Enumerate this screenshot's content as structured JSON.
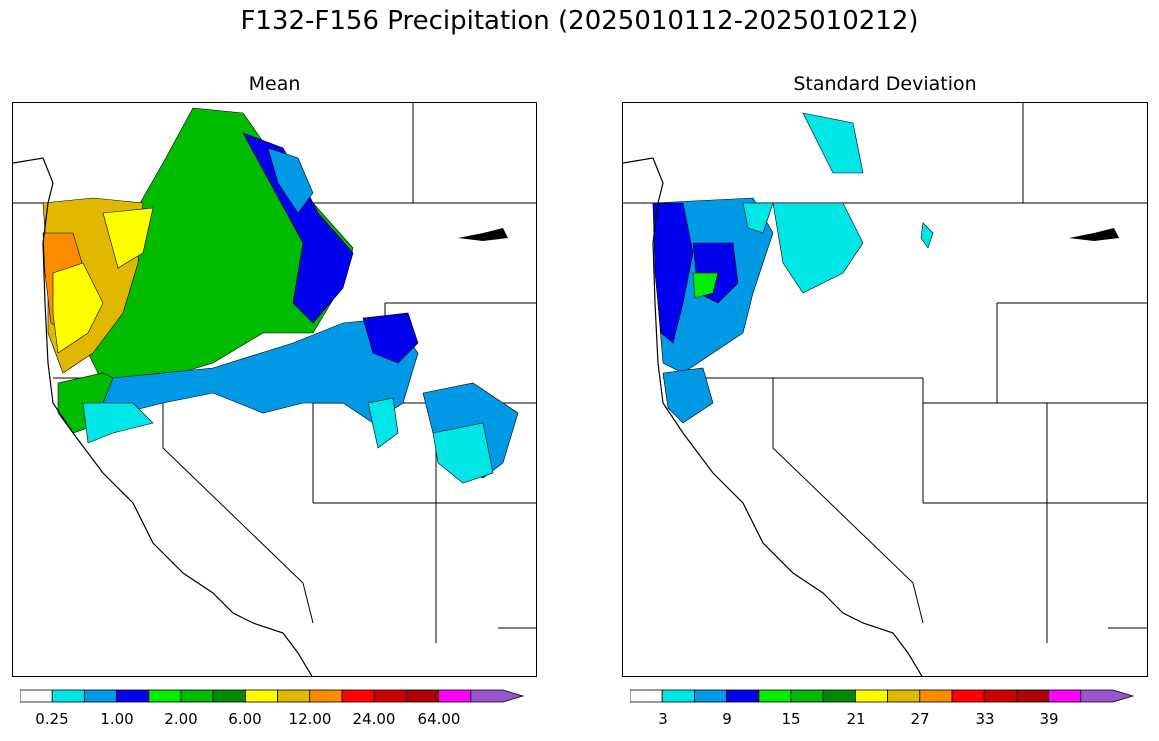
{
  "figure": {
    "title": "F132-F156 Precipitation (2025010112-2025010212)"
  },
  "panels": [
    {
      "id": "mean",
      "title": "Mean",
      "colorbar": {
        "colors": [
          "#ffffff",
          "#00e5e5",
          "#0099e6",
          "#0000ee",
          "#00ee00",
          "#00bb00",
          "#008800",
          "#ffff00",
          "#e0b800",
          "#ff8c00",
          "#ff0000",
          "#cc0000",
          "#b00000",
          "#ff00ff",
          "#9955cc"
        ],
        "labels": [
          "0.25",
          "1.00",
          "2.00",
          "6.00",
          "12.00",
          "24.00",
          "64.00"
        ]
      }
    },
    {
      "id": "stddev",
      "title": "Standard Deviation",
      "colorbar": {
        "colors": [
          "#ffffff",
          "#00e5e5",
          "#0099e6",
          "#0000ee",
          "#00ee00",
          "#00bb00",
          "#008800",
          "#ffff00",
          "#e0b800",
          "#ff8c00",
          "#ff0000",
          "#cc0000",
          "#b00000",
          "#ff00ff",
          "#9955cc"
        ],
        "labels": [
          "3",
          "9",
          "15",
          "21",
          "27",
          "33",
          "39"
        ]
      }
    }
  ]
}
